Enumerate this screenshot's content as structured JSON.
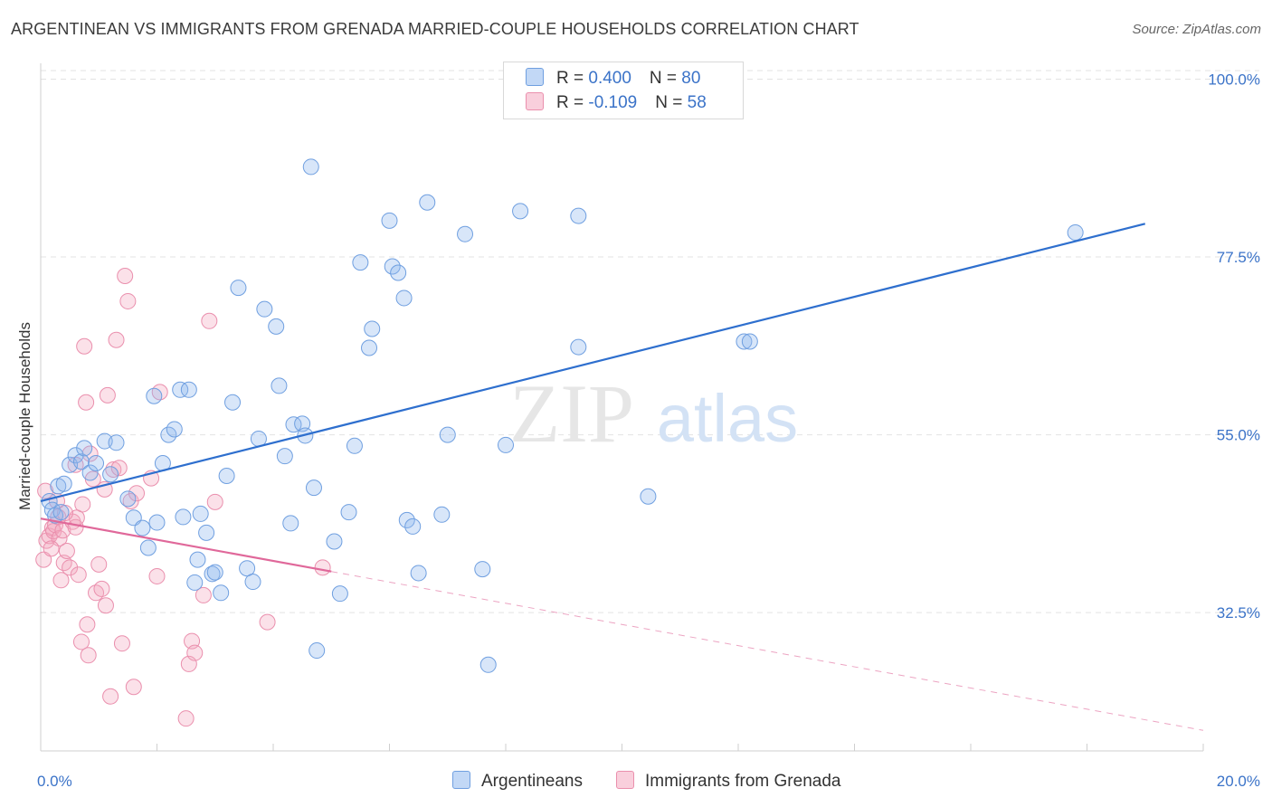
{
  "header": {
    "title": "ARGENTINEAN VS IMMIGRANTS FROM GRENADA MARRIED-COUPLE HOUSEHOLDS CORRELATION CHART",
    "source": "Source: ZipAtlas.com"
  },
  "watermark": {
    "zip": "ZIP",
    "atlas": "atlas"
  },
  "legend": {
    "rows": [
      {
        "r_label": "R = ",
        "r_value": "0.400",
        "n_label": "N = ",
        "n_value": "80",
        "color": "#8fb8ee"
      },
      {
        "r_label": "R = ",
        "r_value": "-0.109",
        "n_label": "N = ",
        "n_value": "58",
        "color": "#f4a8c0"
      }
    ]
  },
  "colors": {
    "blue_fill": "rgba(143,184,238,0.35)",
    "blue_stroke": "#6f9fe0",
    "blue_line": "#2e6fce",
    "pink_fill": "rgba(244,168,192,0.35)",
    "pink_stroke": "#ea8fad",
    "pink_line": "#e0689a",
    "tick": "#3b73c8",
    "grid": "#e3e3e3"
  },
  "chart_data": {
    "type": "scatter",
    "title": "ARGENTINEAN VS IMMIGRANTS FROM GRENADA MARRIED-COUPLE HOUSEHOLDS CORRELATION CHART",
    "xlabel": "",
    "ylabel": "Married-couple Households",
    "xlim": [
      0,
      20
    ],
    "ylim": [
      15,
      102
    ],
    "x_tick_labels": [
      {
        "value": 0,
        "label": "0.0%"
      },
      {
        "value": 20,
        "label": "20.0%"
      }
    ],
    "x_minor_ticks": [
      2,
      4,
      6,
      8,
      10,
      12,
      14,
      16,
      18,
      20
    ],
    "y_ticks": [
      {
        "value": 100,
        "label": "100.0%"
      },
      {
        "value": 77.5,
        "label": "77.5%"
      },
      {
        "value": 55,
        "label": "55.0%"
      },
      {
        "value": 32.5,
        "label": "32.5%"
      }
    ],
    "grid": true,
    "legend_position": "bottom",
    "series": [
      {
        "name": "Argentineans",
        "color": "#8fb8ee",
        "trend": {
          "x": [
            0,
            19
          ],
          "y": [
            46.6,
            81.7
          ],
          "dashed_to": null
        },
        "points": [
          [
            0.15,
            46.6
          ],
          [
            0.2,
            45.5
          ],
          [
            0.25,
            44.8
          ],
          [
            0.3,
            48.5
          ],
          [
            0.35,
            45.2
          ],
          [
            0.4,
            48.8
          ],
          [
            0.5,
            51.2
          ],
          [
            0.6,
            52.4
          ],
          [
            0.7,
            51.6
          ],
          [
            0.75,
            53.3
          ],
          [
            0.85,
            50.2
          ],
          [
            0.95,
            51.4
          ],
          [
            1.1,
            54.2
          ],
          [
            1.2,
            50.0
          ],
          [
            1.3,
            54.0
          ],
          [
            1.5,
            46.9
          ],
          [
            1.6,
            44.5
          ],
          [
            1.75,
            43.2
          ],
          [
            1.85,
            40.7
          ],
          [
            1.95,
            59.9
          ],
          [
            2.0,
            43.9
          ],
          [
            2.1,
            51.4
          ],
          [
            2.2,
            55.0
          ],
          [
            2.3,
            55.7
          ],
          [
            2.4,
            60.7
          ],
          [
            2.45,
            44.6
          ],
          [
            2.55,
            60.7
          ],
          [
            2.65,
            36.3
          ],
          [
            2.7,
            39.2
          ],
          [
            2.75,
            45.0
          ],
          [
            2.85,
            42.6
          ],
          [
            2.95,
            37.4
          ],
          [
            3.0,
            37.6
          ],
          [
            3.1,
            35.0
          ],
          [
            3.2,
            49.8
          ],
          [
            3.3,
            59.1
          ],
          [
            3.4,
            73.6
          ],
          [
            3.55,
            38.1
          ],
          [
            3.65,
            36.4
          ],
          [
            3.75,
            54.5
          ],
          [
            3.85,
            70.9
          ],
          [
            4.05,
            68.7
          ],
          [
            4.1,
            61.2
          ],
          [
            4.2,
            52.3
          ],
          [
            4.3,
            43.8
          ],
          [
            4.35,
            56.3
          ],
          [
            4.5,
            56.4
          ],
          [
            4.55,
            54.9
          ],
          [
            4.65,
            88.9
          ],
          [
            4.7,
            48.3
          ],
          [
            4.75,
            27.7
          ],
          [
            5.05,
            41.5
          ],
          [
            5.15,
            34.9
          ],
          [
            5.3,
            45.2
          ],
          [
            5.4,
            53.6
          ],
          [
            5.5,
            76.8
          ],
          [
            5.65,
            66.0
          ],
          [
            5.7,
            68.4
          ],
          [
            6.0,
            82.1
          ],
          [
            6.05,
            76.3
          ],
          [
            6.15,
            75.5
          ],
          [
            6.25,
            72.3
          ],
          [
            6.3,
            44.2
          ],
          [
            6.4,
            43.4
          ],
          [
            6.5,
            37.5
          ],
          [
            6.65,
            84.4
          ],
          [
            6.9,
            44.9
          ],
          [
            7.0,
            55.0
          ],
          [
            7.3,
            80.4
          ],
          [
            7.6,
            38.0
          ],
          [
            7.7,
            25.9
          ],
          [
            8.0,
            53.7
          ],
          [
            8.25,
            83.3
          ],
          [
            9.25,
            66.1
          ],
          [
            9.25,
            82.7
          ],
          [
            10.45,
            47.2
          ],
          [
            12.1,
            66.8
          ],
          [
            12.2,
            66.8
          ],
          [
            17.8,
            80.6
          ]
        ]
      },
      {
        "name": "Immigrants from Grenada",
        "color": "#f4a8c0",
        "trend": {
          "x": [
            0,
            5.0
          ],
          "y": [
            44.4,
            37.7
          ],
          "dashed_to": [
            20,
            17.6
          ]
        },
        "points": [
          [
            0.05,
            39.2
          ],
          [
            0.1,
            41.6
          ],
          [
            0.15,
            42.2
          ],
          [
            0.2,
            43.2
          ],
          [
            0.22,
            42.8
          ],
          [
            0.25,
            43.6
          ],
          [
            0.28,
            46.6
          ],
          [
            0.3,
            44.6
          ],
          [
            0.32,
            41.9
          ],
          [
            0.35,
            36.6
          ],
          [
            0.38,
            42.9
          ],
          [
            0.4,
            38.8
          ],
          [
            0.45,
            40.3
          ],
          [
            0.5,
            38.2
          ],
          [
            0.55,
            44.0
          ],
          [
            0.6,
            43.3
          ],
          [
            0.62,
            44.5
          ],
          [
            0.65,
            37.3
          ],
          [
            0.7,
            28.8
          ],
          [
            0.72,
            46.2
          ],
          [
            0.75,
            66.2
          ],
          [
            0.78,
            59.1
          ],
          [
            0.8,
            31.0
          ],
          [
            0.82,
            27.1
          ],
          [
            0.85,
            52.6
          ],
          [
            0.9,
            49.4
          ],
          [
            0.95,
            35.0
          ],
          [
            1.0,
            38.6
          ],
          [
            1.05,
            35.5
          ],
          [
            1.1,
            48.1
          ],
          [
            1.12,
            33.4
          ],
          [
            1.15,
            60.0
          ],
          [
            1.2,
            21.9
          ],
          [
            1.25,
            50.6
          ],
          [
            1.3,
            67.0
          ],
          [
            1.35,
            50.8
          ],
          [
            1.4,
            28.6
          ],
          [
            1.45,
            75.1
          ],
          [
            1.5,
            71.9
          ],
          [
            1.55,
            46.6
          ],
          [
            1.6,
            23.1
          ],
          [
            1.65,
            47.6
          ],
          [
            1.9,
            49.5
          ],
          [
            2.0,
            37.1
          ],
          [
            2.05,
            60.4
          ],
          [
            2.5,
            19.1
          ],
          [
            2.55,
            26.0
          ],
          [
            2.6,
            28.9
          ],
          [
            2.65,
            27.4
          ],
          [
            2.8,
            34.7
          ],
          [
            2.9,
            69.4
          ],
          [
            3.0,
            46.5
          ],
          [
            3.9,
            31.3
          ],
          [
            4.85,
            38.2
          ],
          [
            0.08,
            47.9
          ],
          [
            0.18,
            40.6
          ],
          [
            0.42,
            45.1
          ],
          [
            0.6,
            51.2
          ]
        ]
      }
    ]
  }
}
